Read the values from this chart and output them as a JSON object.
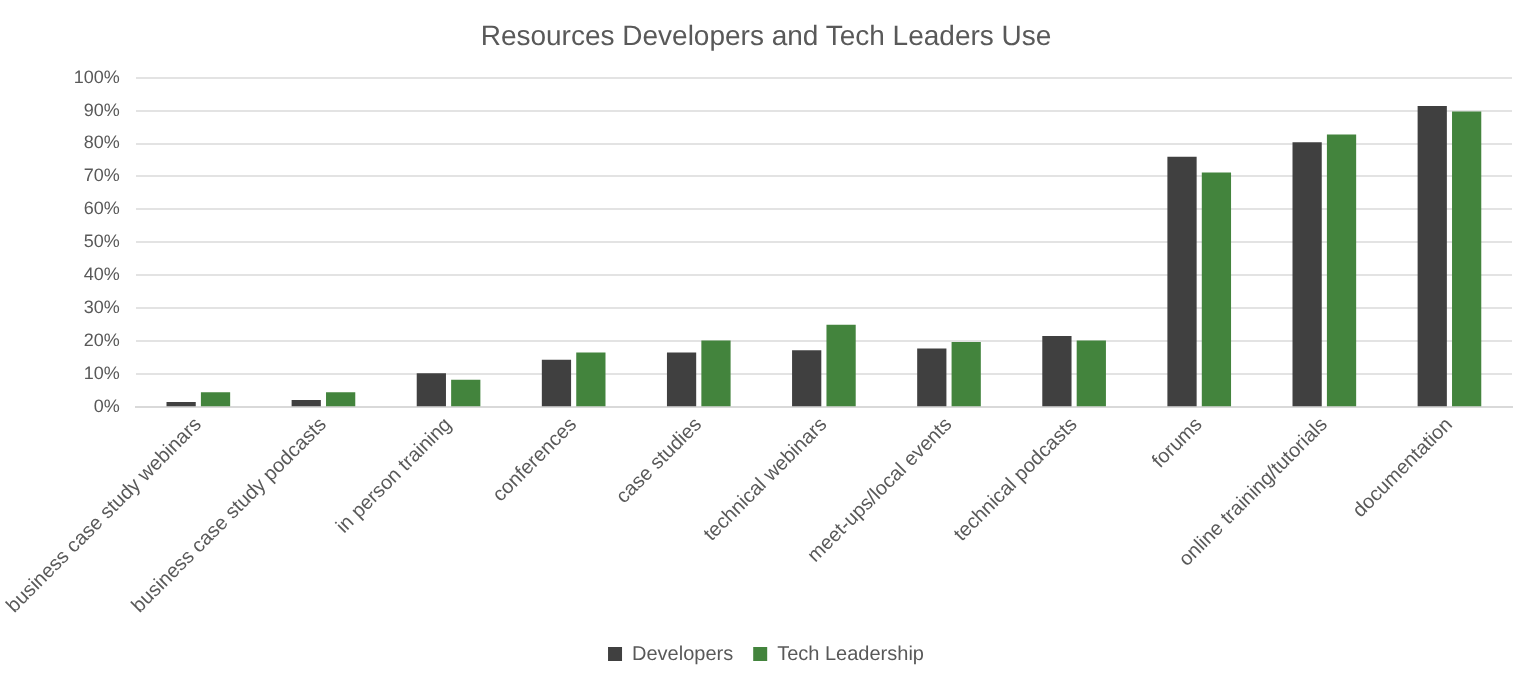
{
  "chart_data": {
    "type": "bar",
    "title": "Resources Developers and Tech Leaders Use",
    "categories": [
      "business case study webinars",
      "business case study podcasts",
      "in person training",
      "conferences",
      "case studies",
      "technical webinars",
      "meet-ups/local events",
      "technical podcasts",
      "forums",
      "online training/tutorials",
      "documentation"
    ],
    "series": [
      {
        "name": "Developers",
        "color": "#404040",
        "values": [
          1.6,
          2.2,
          10.3,
          14.4,
          16.6,
          17.3,
          17.8,
          21.6,
          76,
          80.4,
          91.4
        ]
      },
      {
        "name": "Tech Leadership",
        "color": "#43843d",
        "values": [
          4.5,
          4.5,
          8.3,
          16.6,
          20.2,
          25,
          19.8,
          20.2,
          71.2,
          82.7,
          89.7
        ]
      }
    ],
    "ylim": [
      0,
      100
    ],
    "yticks": [
      {
        "value": 0,
        "label": "0%"
      },
      {
        "value": 10,
        "label": "10%"
      },
      {
        "value": 20,
        "label": "20%"
      },
      {
        "value": 30,
        "label": "30%"
      },
      {
        "value": 40,
        "label": "40%"
      },
      {
        "value": 50,
        "label": "50%"
      },
      {
        "value": 60,
        "label": "60%"
      },
      {
        "value": 70,
        "label": "70%"
      },
      {
        "value": 80,
        "label": "80%"
      },
      {
        "value": 90,
        "label": "90%"
      },
      {
        "value": 100,
        "label": "100%"
      }
    ],
    "grid": "y",
    "legend": "bottom"
  }
}
